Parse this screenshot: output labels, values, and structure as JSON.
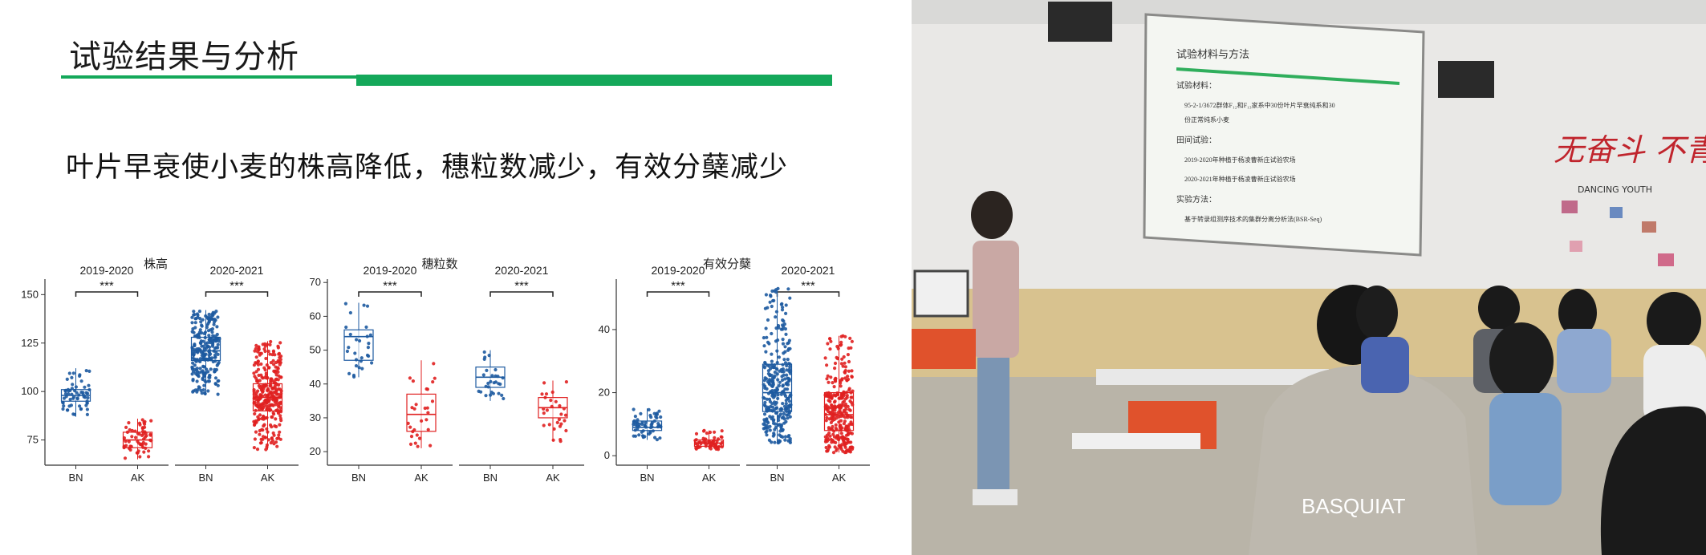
{
  "slide": {
    "title": "试验结果与分析",
    "subtitle": "叶片早衰使小麦的株高降低，穗粒数减少，有效分蘖减少",
    "accent_color": "#14a85a"
  },
  "chart_data": [
    {
      "type": "box",
      "title": "株高",
      "panels": [
        "2019-2020",
        "2020-2021"
      ],
      "categories": [
        "BN",
        "AK"
      ],
      "significance": [
        "***",
        "***"
      ],
      "yticks": [
        75,
        100,
        125,
        150
      ],
      "ylim": [
        62,
        158
      ],
      "colors": {
        "BN": "#1d5aa0",
        "AK": "#e02020"
      },
      "boxes": [
        {
          "panel": "2019-2020",
          "group": "BN",
          "q1": 95,
          "median": 98,
          "q3": 101,
          "whisker_low": 87,
          "whisker_high": 112,
          "n": 60
        },
        {
          "panel": "2019-2020",
          "group": "AK",
          "q1": 71,
          "median": 75,
          "q3": 79,
          "whisker_low": 65,
          "whisker_high": 86,
          "n": 60
        },
        {
          "panel": "2020-2021",
          "group": "BN",
          "q1": 116,
          "median": 121,
          "q3": 128,
          "whisker_low": 98,
          "whisker_high": 142,
          "n": 250
        },
        {
          "panel": "2020-2021",
          "group": "AK",
          "q1": 90,
          "median": 97,
          "q3": 104,
          "whisker_low": 70,
          "whisker_high": 126,
          "n": 300
        }
      ]
    },
    {
      "type": "box",
      "title": "穗粒数",
      "panels": [
        "2019-2020",
        "2020-2021"
      ],
      "categories": [
        "BN",
        "AK"
      ],
      "significance": [
        "***",
        "***"
      ],
      "yticks": [
        20,
        30,
        40,
        50,
        60,
        70
      ],
      "ylim": [
        16,
        71
      ],
      "colors": {
        "BN": "#1d5aa0",
        "AK": "#e02020"
      },
      "boxes": [
        {
          "panel": "2019-2020",
          "group": "BN",
          "q1": 47,
          "median": 54,
          "q3": 56,
          "whisker_low": 42,
          "whisker_high": 64,
          "n": 28
        },
        {
          "panel": "2019-2020",
          "group": "AK",
          "q1": 26,
          "median": 31,
          "q3": 37,
          "whisker_low": 21,
          "whisker_high": 47,
          "n": 28
        },
        {
          "panel": "2020-2021",
          "group": "BN",
          "q1": 39,
          "median": 42,
          "q3": 45,
          "whisker_low": 35,
          "whisker_high": 50,
          "n": 28
        },
        {
          "panel": "2020-2021",
          "group": "AK",
          "q1": 30,
          "median": 33,
          "q3": 36,
          "whisker_low": 23,
          "whisker_high": 41,
          "n": 28
        }
      ]
    },
    {
      "type": "box",
      "title": "有效分蘖",
      "panels": [
        "2019-2020",
        "2020-2021"
      ],
      "categories": [
        "BN",
        "AK"
      ],
      "significance": [
        "***",
        "***"
      ],
      "yticks": [
        0,
        20,
        40
      ],
      "ylim": [
        -3,
        56
      ],
      "colors": {
        "BN": "#1d5aa0",
        "AK": "#e02020"
      },
      "boxes": [
        {
          "panel": "2019-2020",
          "group": "BN",
          "q1": 8,
          "median": 9,
          "q3": 11,
          "whisker_low": 5,
          "whisker_high": 15,
          "n": 60
        },
        {
          "panel": "2019-2020",
          "group": "AK",
          "q1": 3,
          "median": 4,
          "q3": 5,
          "whisker_low": 2,
          "whisker_high": 8,
          "n": 60
        },
        {
          "panel": "2020-2021",
          "group": "BN",
          "q1": 14,
          "median": 20,
          "q3": 29,
          "whisker_low": 4,
          "whisker_high": 53,
          "n": 300
        },
        {
          "panel": "2020-2021",
          "group": "AK",
          "q1": 8,
          "median": 13,
          "q3": 20,
          "whisker_low": 1,
          "whisker_high": 38,
          "n": 300
        }
      ]
    }
  ],
  "photo": {
    "projector_slide": {
      "title": "试验材料与方法",
      "lines": [
        "试验材料：",
        "95-2-1/3672群体F₁₂和F₁₃家系中30份叶片早衰纯系和30",
        "份正常纯系小麦",
        "田间试验：",
        "2019-2020年种植于杨凌曹新庄试验农场",
        "2020-2021年种植于杨凌曹新庄试验农场",
        "实验方法：",
        "基于转录组测序技术的集群分离分析法(BSR-Seq)"
      ]
    },
    "wall_text": "无奋斗 不青春",
    "wall_text_small": "DANCING YOUTH",
    "shirt_text": "BASQUIAT"
  }
}
